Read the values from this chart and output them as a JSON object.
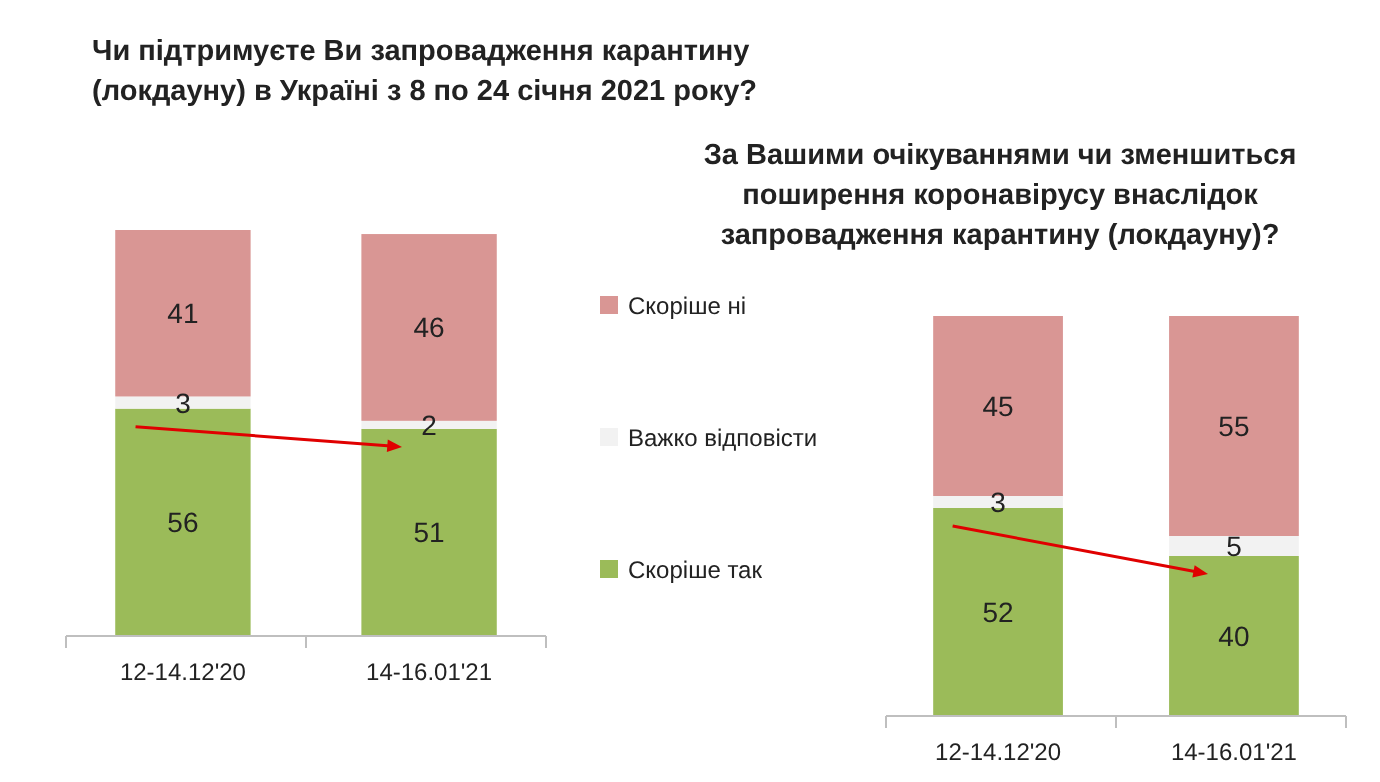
{
  "chart_data": [
    {
      "type": "bar",
      "stacked": true,
      "title": "Чи підтримуєте Ви запровадження карантину\n(локдауну)  в Україні з 8 по 24 січня 2021 року?",
      "categories": [
        "12-14.12'20",
        "14-16.01'21"
      ],
      "data_labels": true,
      "legend": "right",
      "series": [
        {
          "name": "Скоріше так",
          "color": "#9bbb59",
          "values": [
            56,
            51
          ]
        },
        {
          "name": "Важко відповісти",
          "color": "#f2f2f2",
          "values": [
            3,
            2
          ]
        },
        {
          "name": "Скоріше ні",
          "color": "#d99694",
          "values": [
            41,
            46
          ]
        }
      ]
    },
    {
      "type": "bar",
      "stacked": true,
      "title": "За Вашими очікуваннями чи зменшиться\nпоширення коронавірусу внаслідок\nзапровадження карантину (локдауну)?",
      "categories": [
        "12-14.12'20",
        "14-16.01'21"
      ],
      "data_labels": true,
      "legend": false,
      "series": [
        {
          "color": "#9bbb59",
          "values": [
            52,
            40
          ]
        },
        {
          "color": "#f2f2f2",
          "values": [
            3,
            5
          ]
        },
        {
          "color": "#d99694",
          "values": [
            45,
            55
          ]
        }
      ]
    }
  ]
}
